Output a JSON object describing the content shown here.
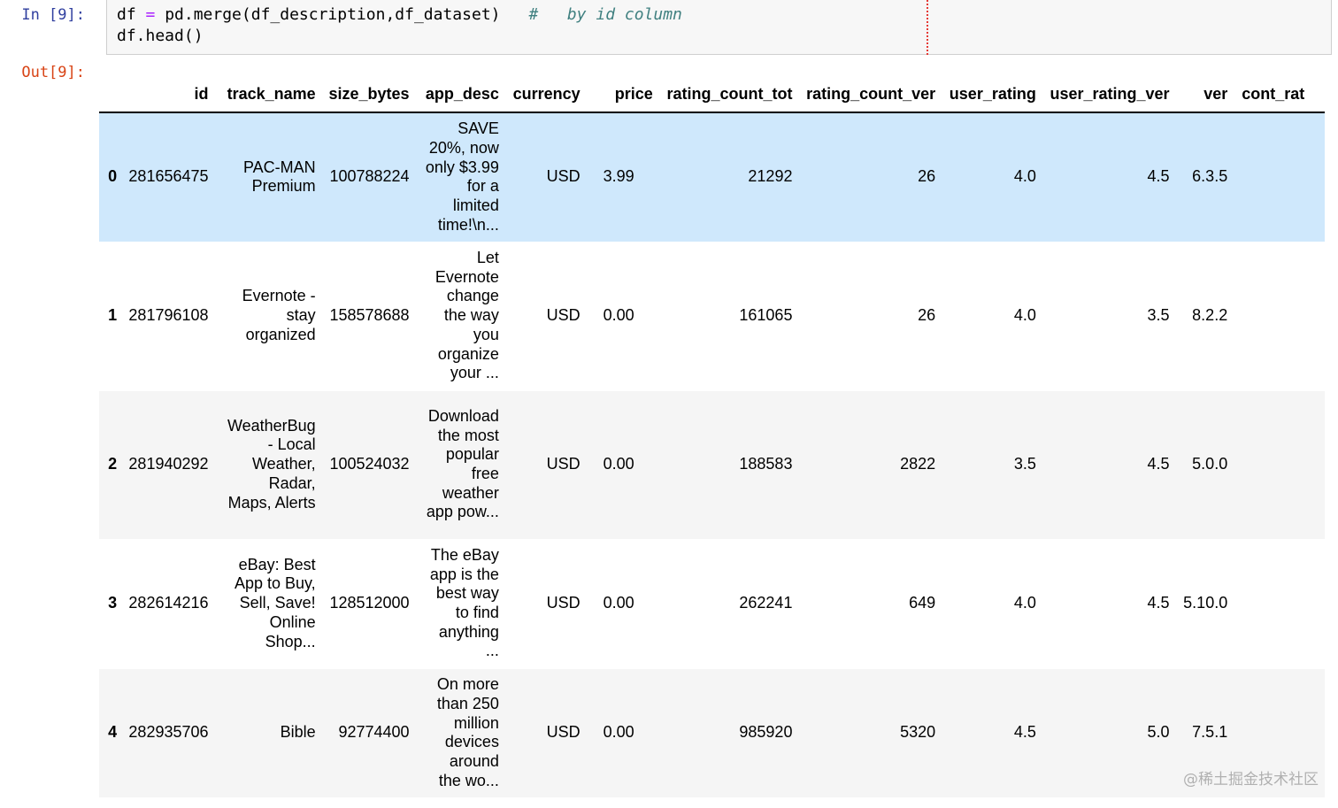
{
  "prompts": {
    "in": "In [9]:",
    "out": "Out[9]:"
  },
  "code": {
    "line1_a": "df ",
    "line1_op": "=",
    "line1_b": " pd.merge(df_description,df_dataset)",
    "line1_comment": "#   by id column",
    "line2": "df.head()"
  },
  "table": {
    "columns": [
      "",
      "id",
      "track_name",
      "size_bytes",
      "app_desc",
      "currency",
      "price",
      "rating_count_tot",
      "rating_count_ver",
      "user_rating",
      "user_rating_ver",
      "ver",
      "cont_rat"
    ],
    "rows": [
      {
        "index": "0",
        "id": "281656475",
        "track_name": "PAC-MAN Premium",
        "size_bytes": "100788224",
        "app_desc": "SAVE 20%, now only $3.99 for a limited time!\\n...",
        "currency": "USD",
        "price": "3.99",
        "rating_count_tot": "21292",
        "rating_count_ver": "26",
        "user_rating": "4.0",
        "user_rating_ver": "4.5",
        "ver": "6.3.5",
        "cont_rat": ""
      },
      {
        "index": "1",
        "id": "281796108",
        "track_name": "Evernote - stay organized",
        "size_bytes": "158578688",
        "app_desc": "Let Evernote change the way you organize your ...",
        "currency": "USD",
        "price": "0.00",
        "rating_count_tot": "161065",
        "rating_count_ver": "26",
        "user_rating": "4.0",
        "user_rating_ver": "3.5",
        "ver": "8.2.2",
        "cont_rat": ""
      },
      {
        "index": "2",
        "id": "281940292",
        "track_name": "WeatherBug - Local Weather, Radar, Maps, Alerts",
        "size_bytes": "100524032",
        "app_desc": "Download the most popular free weather app pow...",
        "currency": "USD",
        "price": "0.00",
        "rating_count_tot": "188583",
        "rating_count_ver": "2822",
        "user_rating": "3.5",
        "user_rating_ver": "4.5",
        "ver": "5.0.0",
        "cont_rat": ""
      },
      {
        "index": "3",
        "id": "282614216",
        "track_name": "eBay: Best App to Buy, Sell, Save! Online Shop...",
        "size_bytes": "128512000",
        "app_desc": "The eBay app is the best way to find anything ...",
        "currency": "USD",
        "price": "0.00",
        "rating_count_tot": "262241",
        "rating_count_ver": "649",
        "user_rating": "4.0",
        "user_rating_ver": "4.5",
        "ver": "5.10.0",
        "cont_rat": ""
      },
      {
        "index": "4",
        "id": "282935706",
        "track_name": "Bible",
        "size_bytes": "92774400",
        "app_desc": "On more than 250 million devices around the wo...",
        "currency": "USD",
        "price": "0.00",
        "rating_count_tot": "985920",
        "rating_count_ver": "5320",
        "user_rating": "4.5",
        "user_rating_ver": "5.0",
        "ver": "7.5.1",
        "cont_rat": ""
      }
    ]
  },
  "watermark": "@稀土掘金技术社区",
  "colors": {
    "highlight_row": "#cfe8fc",
    "stripe_row": "#f5f5f5",
    "in_prompt": "#303f9f",
    "out_prompt": "#d84315"
  }
}
